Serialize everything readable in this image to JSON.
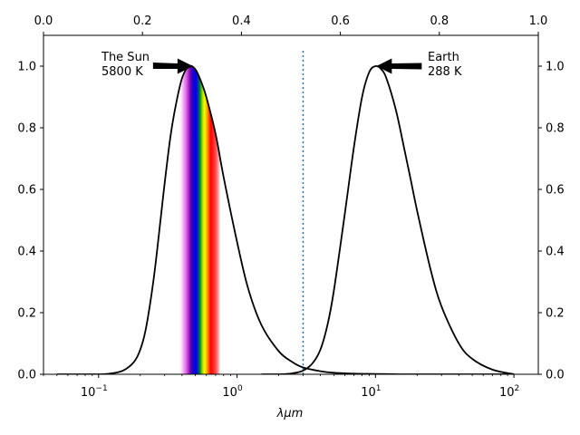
{
  "chart_data": {
    "type": "line",
    "title": "",
    "xlabel": "λμm",
    "ylabel": "",
    "xscale": "log",
    "xlim": [
      0.04,
      150
    ],
    "ylim": [
      0.0,
      1.1
    ],
    "x_ticks": [
      {
        "value": 0.1,
        "base": "10",
        "exp": "−1"
      },
      {
        "value": 1,
        "base": "10",
        "exp": "0"
      },
      {
        "value": 10,
        "base": "10",
        "exp": "1"
      },
      {
        "value": 100,
        "base": "10",
        "exp": "2"
      }
    ],
    "y_ticks": [
      "0.0",
      "0.2",
      "0.4",
      "0.6",
      "0.8",
      "1.0"
    ],
    "top_ticks": [
      "0.0",
      "0.2",
      "0.4",
      "0.6",
      "0.8",
      "1.0"
    ],
    "grid": false,
    "series": [
      {
        "color": "#000000",
        "x": [
          0.05,
          0.1,
          0.12,
          0.15,
          0.18,
          0.2,
          0.22,
          0.25,
          0.28,
          0.3,
          0.33,
          0.36,
          0.4,
          0.45,
          0.5,
          0.55,
          0.6,
          0.7,
          0.8,
          1.0,
          1.2,
          1.5,
          2.0,
          2.5,
          3.0,
          4.0,
          5.0,
          7.0,
          10.0,
          15.0,
          20.0,
          30.0,
          50.0,
          100.0
        ],
        "y": [
          0.0,
          0.0,
          0.002,
          0.012,
          0.04,
          0.08,
          0.15,
          0.31,
          0.5,
          0.62,
          0.77,
          0.87,
          0.96,
          1.0,
          0.99,
          0.95,
          0.9,
          0.78,
          0.64,
          0.43,
          0.28,
          0.16,
          0.075,
          0.04,
          0.022,
          0.01,
          0.005,
          0.002,
          0.001,
          0.0,
          0.0,
          0.0,
          0.0,
          0.0
        ]
      },
      {
        "color": "#000000",
        "x": [
          1.5,
          2.0,
          2.5,
          3.0,
          3.5,
          4.0,
          4.5,
          5.0,
          6.0,
          7.0,
          8.0,
          9.0,
          10.0,
          11.0,
          12.0,
          14.0,
          16.0,
          18.0,
          20.0,
          25.0,
          30.0,
          40.0,
          50.0,
          70.0,
          100.0
        ],
        "y": [
          0.0,
          0.0,
          0.003,
          0.012,
          0.035,
          0.08,
          0.16,
          0.27,
          0.52,
          0.74,
          0.9,
          0.98,
          1.0,
          0.99,
          0.96,
          0.86,
          0.74,
          0.63,
          0.53,
          0.34,
          0.22,
          0.1,
          0.05,
          0.015,
          0.0
        ]
      }
    ],
    "vline": {
      "x": 3.0,
      "color": "#1f77b4",
      "style": "dotted"
    },
    "spectrum_band": {
      "x_start": 0.38,
      "x_end": 0.75
    },
    "annotations": [
      {
        "lines": [
          "The Sun",
          "5800 K"
        ],
        "target_x": 0.48,
        "target_y": 1.0
      },
      {
        "lines": [
          "Earth",
          "288 K"
        ],
        "target_x": 10.0,
        "target_y": 1.0
      }
    ],
    "colors": {
      "curve": "#000000",
      "vline": "#1f77b4",
      "axes": "#000000"
    }
  }
}
